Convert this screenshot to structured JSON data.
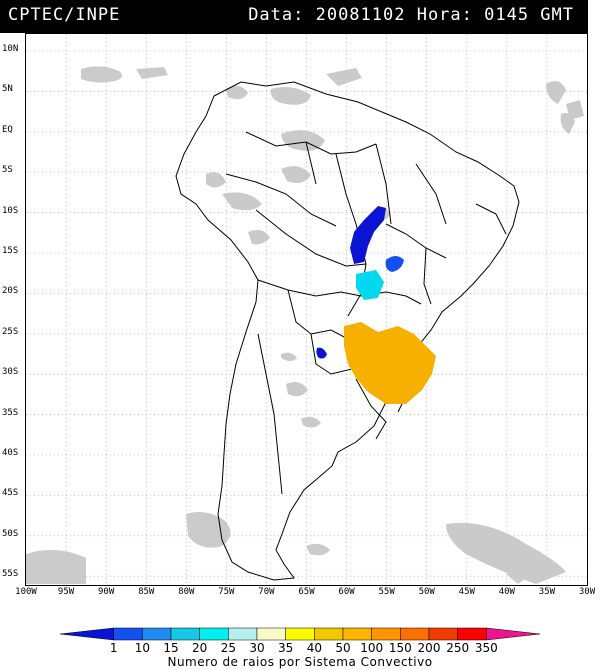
{
  "header": {
    "source": "CPTEC/INPE",
    "datetime": "Data: 20081102 Hora: 0145 GMT"
  },
  "latitude_labels": [
    "10N",
    "5N",
    "EQ",
    "5S",
    "10S",
    "15S",
    "20S",
    "25S",
    "30S",
    "35S",
    "40S",
    "45S",
    "50S",
    "55S"
  ],
  "longitude_labels": [
    "100W",
    "95W",
    "90W",
    "85W",
    "80W",
    "75W",
    "70W",
    "65W",
    "60W",
    "55W",
    "50W",
    "45W",
    "40W",
    "35W",
    "30W"
  ],
  "colorbar": {
    "title": "Numero de raios por Sistema Convectivo",
    "ticks": [
      "1",
      "10",
      "15",
      "20",
      "25",
      "30",
      "35",
      "40",
      "50",
      "100",
      "150",
      "200",
      "250",
      "350"
    ],
    "colors": [
      "#0a14d2",
      "#1450f0",
      "#1e8cf0",
      "#14c8e6",
      "#00f0f0",
      "#b4f0f0",
      "#fafac8",
      "#fafa00",
      "#f0c800",
      "#ffb400",
      "#ff9600",
      "#ff6e00",
      "#f03c00",
      "#ff0000",
      "#f0148c"
    ]
  },
  "lightning_systems": [
    {
      "region": "central Brazil (Mato Grosso/Goias)",
      "class": "1-10",
      "color": "#0a14d2"
    },
    {
      "region": "eastern Goias",
      "class": "10-15",
      "color": "#1450f0"
    },
    {
      "region": "Mato Grosso do Sul",
      "class": "25-30",
      "color": "#00d8f0"
    },
    {
      "region": "Argentina (Chaco)",
      "class": "1-10",
      "color": "#0a14d2"
    },
    {
      "region": "southern Brazil / Uruguay / Paraguay",
      "class": "50-100",
      "color": "#f7b000"
    }
  ],
  "map_style": {
    "cloud_color": "#c8c8c8",
    "grid": "dotted",
    "background": "#ffffff"
  }
}
